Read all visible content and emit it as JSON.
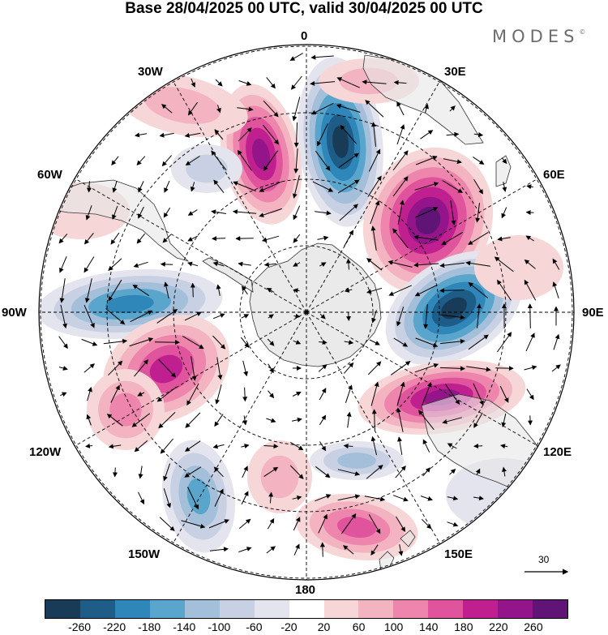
{
  "title": "Base 28/04/2025 00 UTC, valid 30/04/2025 00 UTC",
  "brand": "MODES",
  "brand_mark": "©",
  "map": {
    "projection": "south-polar-stereographic",
    "longitude_labels": {
      "top": "0",
      "top_right": "30E",
      "right_upper": "60E",
      "right": "90E",
      "right_lower": "120E",
      "bottom_right": "150E",
      "bottom": "180",
      "bottom_left": "150W",
      "left_lower": "120W",
      "left": "90W",
      "left_upper": "60W",
      "top_left": "30W"
    },
    "wind_reference": {
      "value": "30"
    },
    "anomaly_centers": [
      {
        "kind": "negative",
        "lon": "near 0",
        "strength": "strong"
      },
      {
        "kind": "positive",
        "lon": "near 30W",
        "strength": "strong"
      },
      {
        "kind": "positive",
        "lon": "near 45E",
        "strength": "very strong"
      },
      {
        "kind": "negative",
        "lon": "near 85E",
        "strength": "very strong"
      },
      {
        "kind": "positive",
        "lon": "near 115E",
        "strength": "strong"
      },
      {
        "kind": "negative",
        "lon": "near 85W",
        "strength": "moderate"
      },
      {
        "kind": "positive",
        "lon": "near 110W",
        "strength": "moderate"
      },
      {
        "kind": "negative",
        "lon": "near 150W",
        "strength": "moderate"
      },
      {
        "kind": "positive",
        "lon": "near 160E",
        "strength": "moderate"
      },
      {
        "kind": "negative",
        "lon": "near 140E",
        "strength": "weak"
      }
    ]
  },
  "colorbar": {
    "colors": [
      "#183c58",
      "#1d5d88",
      "#2e86b9",
      "#5aa5cc",
      "#a3bfd9",
      "#c8d1e4",
      "#e4e4ef",
      "#ffffff",
      "#f7d6d8",
      "#f4b3c1",
      "#ee85ad",
      "#e0539d",
      "#c0208f",
      "#94148a",
      "#5f1476"
    ],
    "ticks": [
      "-260",
      "-220",
      "-180",
      "-140",
      "-100",
      "-60",
      "-20",
      "20",
      "60",
      "100",
      "140",
      "180",
      "220",
      "260"
    ]
  }
}
